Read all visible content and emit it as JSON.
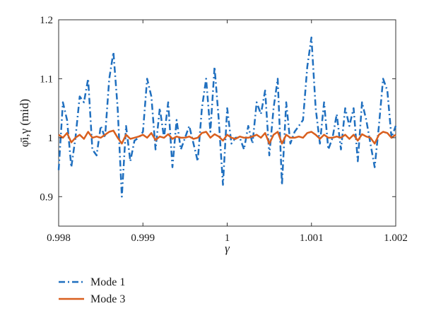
{
  "chart_data": {
    "type": "line",
    "xlabel": "γ",
    "ylabel": "φ̄i,γ (mid)",
    "xlim": [
      0.998,
      1.002
    ],
    "ylim": [
      0.85,
      1.2
    ],
    "xticks": [
      0.998,
      0.999,
      1,
      1.001,
      1.002
    ],
    "xtick_labels": [
      "0.998",
      "0.999",
      "1",
      "1.001",
      "1.002"
    ],
    "yticks": [
      0.9,
      1.0,
      1.1,
      1.2
    ],
    "ytick_labels": [
      "0.9",
      "1",
      "1.1",
      "1.2"
    ],
    "grid": false,
    "legend_position": "below-left",
    "series": [
      {
        "name": "Mode 1",
        "color": "#1f6fbf",
        "style": "dash-dot",
        "x": [
          0.998,
          0.99805,
          0.9981,
          0.99815,
          0.9982,
          0.99825,
          0.9983,
          0.99835,
          0.9984,
          0.99845,
          0.9985,
          0.99855,
          0.9986,
          0.99865,
          0.9987,
          0.99875,
          0.9988,
          0.99885,
          0.9989,
          0.99895,
          0.999,
          0.99905,
          0.9991,
          0.99915,
          0.9992,
          0.99925,
          0.9993,
          0.99935,
          0.9994,
          0.99945,
          0.9995,
          0.99955,
          0.9996,
          0.99965,
          0.9997,
          0.99975,
          0.9998,
          0.99985,
          0.9999,
          0.99995,
          1.0,
          1.00005,
          1.0001,
          1.00015,
          1.0002,
          1.00025,
          1.0003,
          1.00035,
          1.0004,
          1.00045,
          1.0005,
          1.00055,
          1.0006,
          1.00065,
          1.0007,
          1.00075,
          1.0008,
          1.00085,
          1.0009,
          1.00095,
          1.001,
          1.00105,
          1.0011,
          1.00115,
          1.0012,
          1.00125,
          1.0013,
          1.00135,
          1.0014,
          1.00145,
          1.0015,
          1.00155,
          1.0016,
          1.00165,
          1.0017,
          1.00175,
          1.0018,
          1.00185,
          1.0019,
          1.00195,
          1.002
        ],
        "y": [
          0.945,
          1.06,
          1.03,
          0.95,
          1.0,
          1.07,
          1.06,
          1.1,
          0.98,
          0.97,
          1.02,
          1.0,
          1.1,
          1.145,
          1.05,
          0.9,
          1.02,
          0.96,
          0.995,
          1.0,
          1.01,
          1.1,
          1.07,
          0.98,
          1.05,
          1.0,
          1.06,
          0.95,
          1.03,
          0.98,
          1.0,
          1.02,
          0.99,
          0.96,
          1.05,
          1.1,
          1.01,
          1.12,
          1.03,
          0.92,
          1.05,
          0.99,
          1.0,
          1.0,
          0.98,
          1.02,
          0.99,
          1.06,
          1.04,
          1.08,
          0.97,
          1.05,
          1.1,
          0.92,
          1.06,
          0.99,
          1.01,
          1.02,
          1.03,
          1.12,
          1.17,
          1.05,
          0.99,
          1.06,
          0.98,
          1.0,
          1.04,
          0.98,
          1.05,
          1.02,
          1.05,
          0.96,
          1.06,
          1.03,
          0.99,
          0.95,
          1.02,
          1.1,
          1.08,
          1.0,
          1.02
        ]
      },
      {
        "name": "Mode 3",
        "color": "#d95f1e",
        "style": "solid",
        "x": [
          0.998,
          0.99805,
          0.9981,
          0.99815,
          0.9982,
          0.99825,
          0.9983,
          0.99835,
          0.9984,
          0.99845,
          0.9985,
          0.99855,
          0.9986,
          0.99865,
          0.9987,
          0.99875,
          0.9988,
          0.99885,
          0.9989,
          0.99895,
          0.999,
          0.99905,
          0.9991,
          0.99915,
          0.9992,
          0.99925,
          0.9993,
          0.99935,
          0.9994,
          0.99945,
          0.9995,
          0.99955,
          0.9996,
          0.99965,
          0.9997,
          0.99975,
          0.9998,
          0.99985,
          0.9999,
          0.99995,
          1.0,
          1.00005,
          1.0001,
          1.00015,
          1.0002,
          1.00025,
          1.0003,
          1.00035,
          1.0004,
          1.00045,
          1.0005,
          1.00055,
          1.0006,
          1.00065,
          1.0007,
          1.00075,
          1.0008,
          1.00085,
          1.0009,
          1.00095,
          1.001,
          1.00105,
          1.0011,
          1.00115,
          1.0012,
          1.00125,
          1.0013,
          1.00135,
          1.0014,
          1.00145,
          1.0015,
          1.00155,
          1.0016,
          1.00165,
          1.0017,
          1.00175,
          1.0018,
          1.00185,
          1.0019,
          1.00195,
          1.002
        ],
        "y": [
          1.005,
          1.0,
          1.008,
          0.992,
          1.0,
          1.005,
          0.998,
          1.01,
          1.0,
          1.002,
          1.0,
          1.005,
          1.01,
          1.012,
          1.0,
          0.99,
          1.005,
          0.998,
          1.0,
          1.002,
          1.005,
          1.0,
          1.008,
          0.996,
          1.002,
          1.0,
          1.006,
          0.998,
          1.002,
          1.0,
          1.0,
          1.002,
          0.998,
          1.0,
          1.008,
          1.01,
          1.0,
          1.006,
          1.002,
          0.995,
          1.005,
          1.0,
          0.998,
          1.002,
          1.0,
          1.0,
          1.002,
          1.005,
          1.0,
          1.008,
          0.99,
          1.005,
          1.01,
          0.99,
          1.005,
          1.0,
          1.0,
          1.002,
          1.0,
          1.008,
          1.01,
          1.005,
          0.998,
          1.005,
          1.0,
          1.0,
          1.002,
          1.0,
          1.005,
          0.998,
          1.005,
          0.995,
          1.006,
          1.002,
          1.0,
          0.99,
          1.005,
          1.01,
          1.008,
          1.0,
          1.005
        ]
      }
    ]
  }
}
